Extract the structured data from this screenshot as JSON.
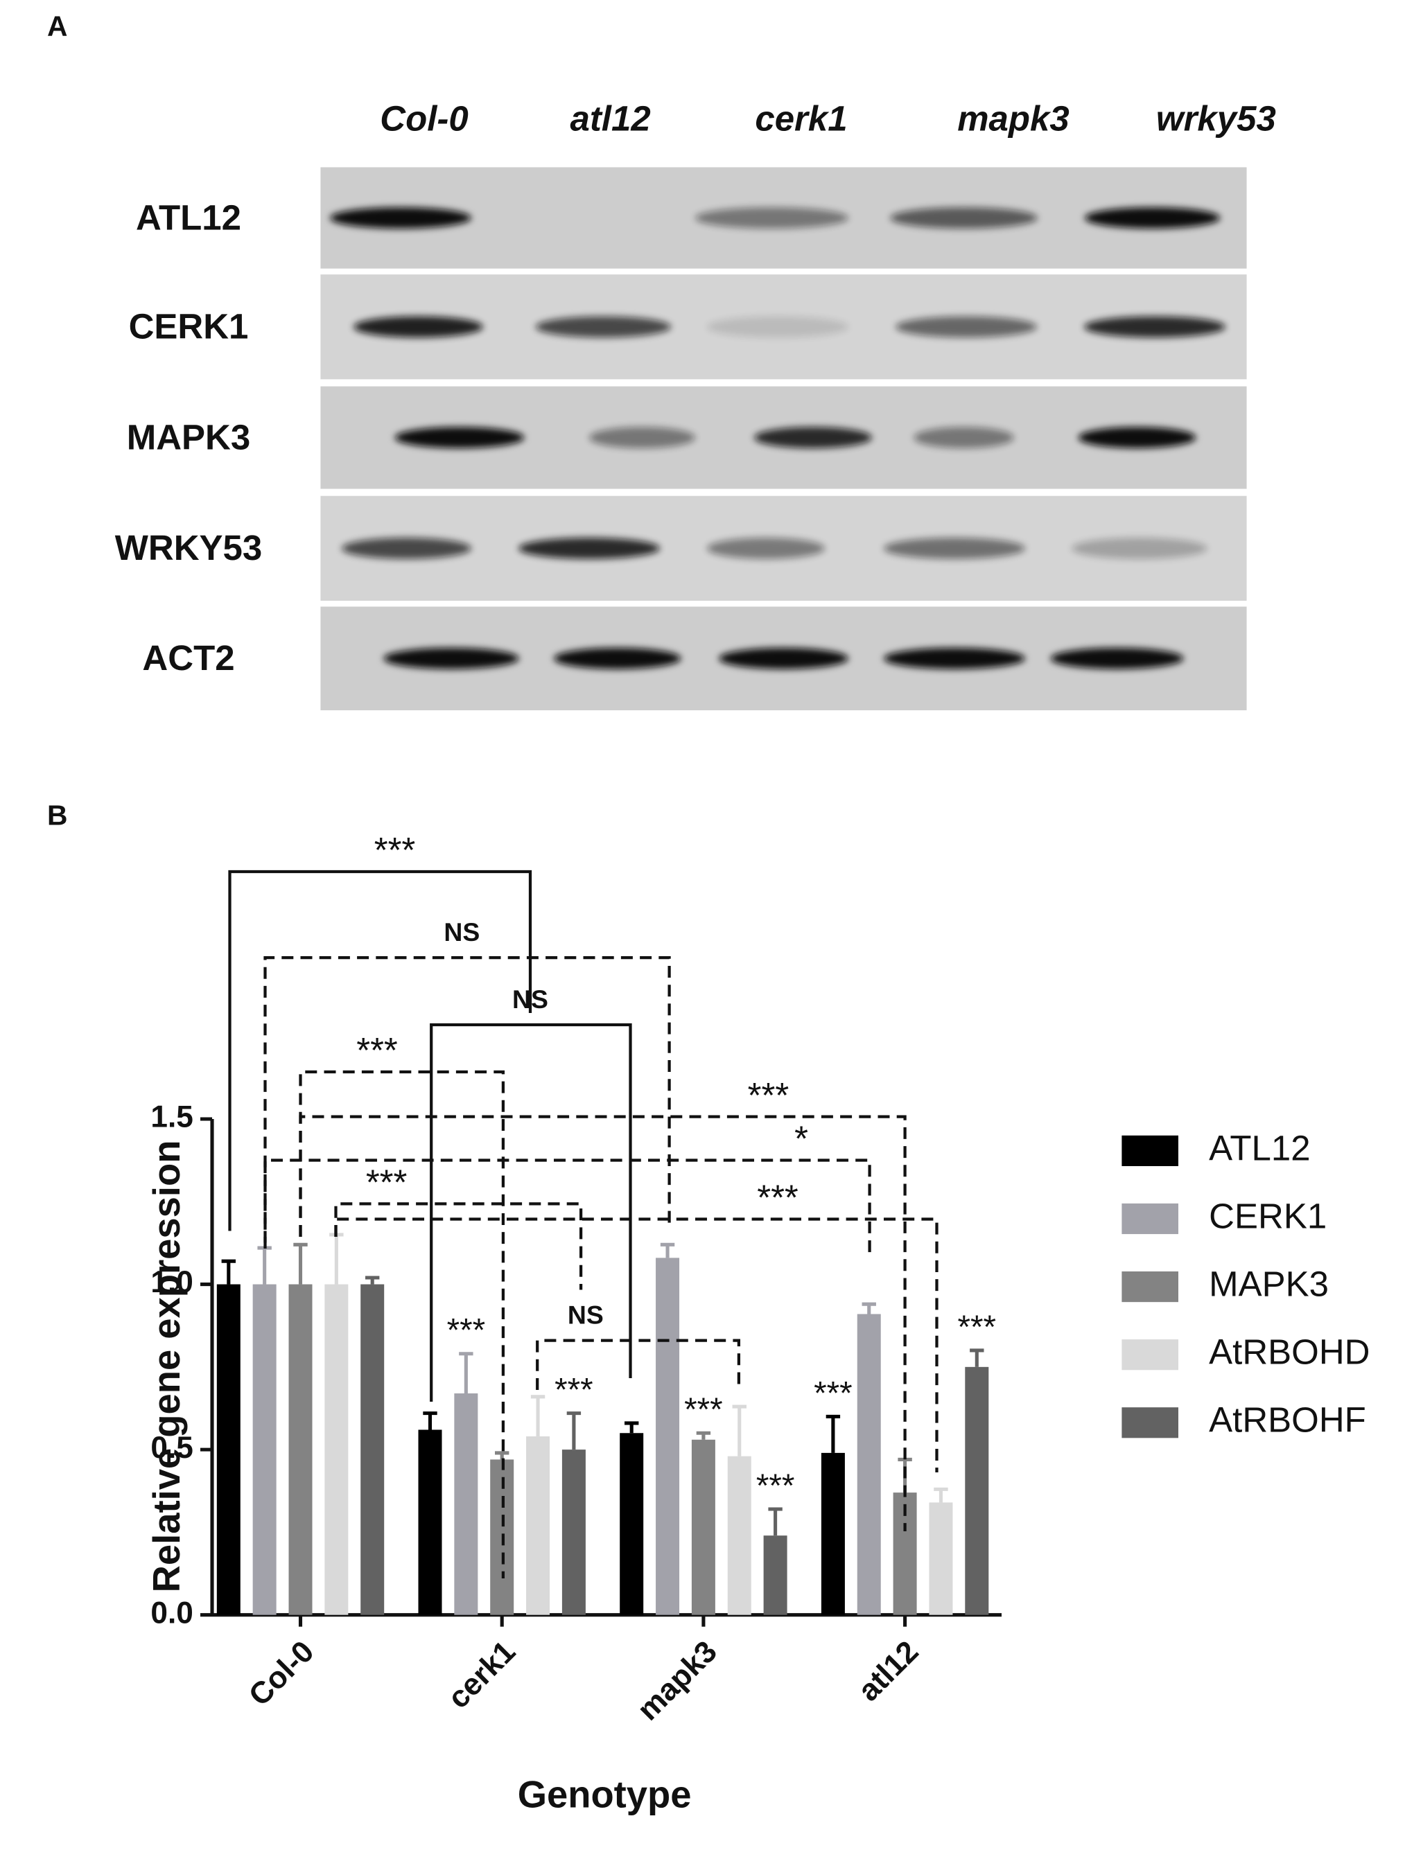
{
  "panel_a": {
    "panel_label": "A",
    "columns": [
      "Col-0",
      "atl12",
      "cerk1",
      "mapk3",
      "wrky53"
    ],
    "rows": [
      "ATL12",
      "CERK1",
      "MAPK3",
      "WRKY53",
      "ACT2"
    ]
  },
  "chart_data": {
    "type": "bar",
    "panel_label": "B",
    "x_label": "Genotype",
    "y_label": "Relative gene expression",
    "categories": [
      "Col-0",
      "cerk1",
      "mapk3",
      "atl12"
    ],
    "ylim": [
      0,
      1.5
    ],
    "yticks": [
      {
        "value": 0,
        "label": "0.0"
      },
      0.5,
      {
        "value": 1,
        "label": "1.0"
      },
      1.5
    ],
    "series": [
      {
        "name": "ATL12",
        "color": "#000000",
        "values": [
          1.0,
          0.56,
          0.55,
          0.49
        ],
        "errors": [
          0.07,
          0.05,
          0.03,
          0.11
        ],
        "significance": [
          null,
          null,
          null,
          "***"
        ]
      },
      {
        "name": "CERK1",
        "color": "#a2a2aa",
        "values": [
          1.0,
          0.67,
          1.08,
          0.91
        ],
        "errors": [
          0.11,
          0.12,
          0.04,
          0.03
        ],
        "significance": [
          null,
          "***",
          null,
          null
        ]
      },
      {
        "name": "MAPK3",
        "color": "#838383",
        "values": [
          1.0,
          0.47,
          0.53,
          0.37
        ],
        "errors": [
          0.12,
          0.02,
          0.02,
          0.1
        ],
        "significance": [
          null,
          null,
          "***",
          null
        ]
      },
      {
        "name": "AtRBOHD",
        "color": "#d9d9d9",
        "values": [
          1.0,
          0.54,
          0.48,
          0.34
        ],
        "errors": [
          0.15,
          0.12,
          0.15,
          0.04
        ],
        "significance": [
          null,
          null,
          null,
          null
        ]
      },
      {
        "name": "AtRBOHF",
        "color": "#626262",
        "values": [
          1.0,
          0.5,
          0.24,
          0.75
        ],
        "errors": [
          0.02,
          0.11,
          0.08,
          0.05
        ],
        "significance": [
          null,
          "***",
          "***",
          "***"
        ]
      }
    ],
    "comparisons": [
      {
        "label": "***",
        "line": "solid"
      },
      {
        "label": "NS",
        "line": "dashed"
      },
      {
        "label": "NS",
        "line": "solid"
      },
      {
        "label": "***",
        "line": "dashed"
      },
      {
        "label": "***",
        "line": "dashed"
      },
      {
        "label": "*",
        "line": "dashed"
      },
      {
        "label": "***",
        "line": "dashed"
      },
      {
        "label": "***",
        "line": "dashed"
      },
      {
        "label": "NS",
        "line": "dashed"
      }
    ]
  }
}
